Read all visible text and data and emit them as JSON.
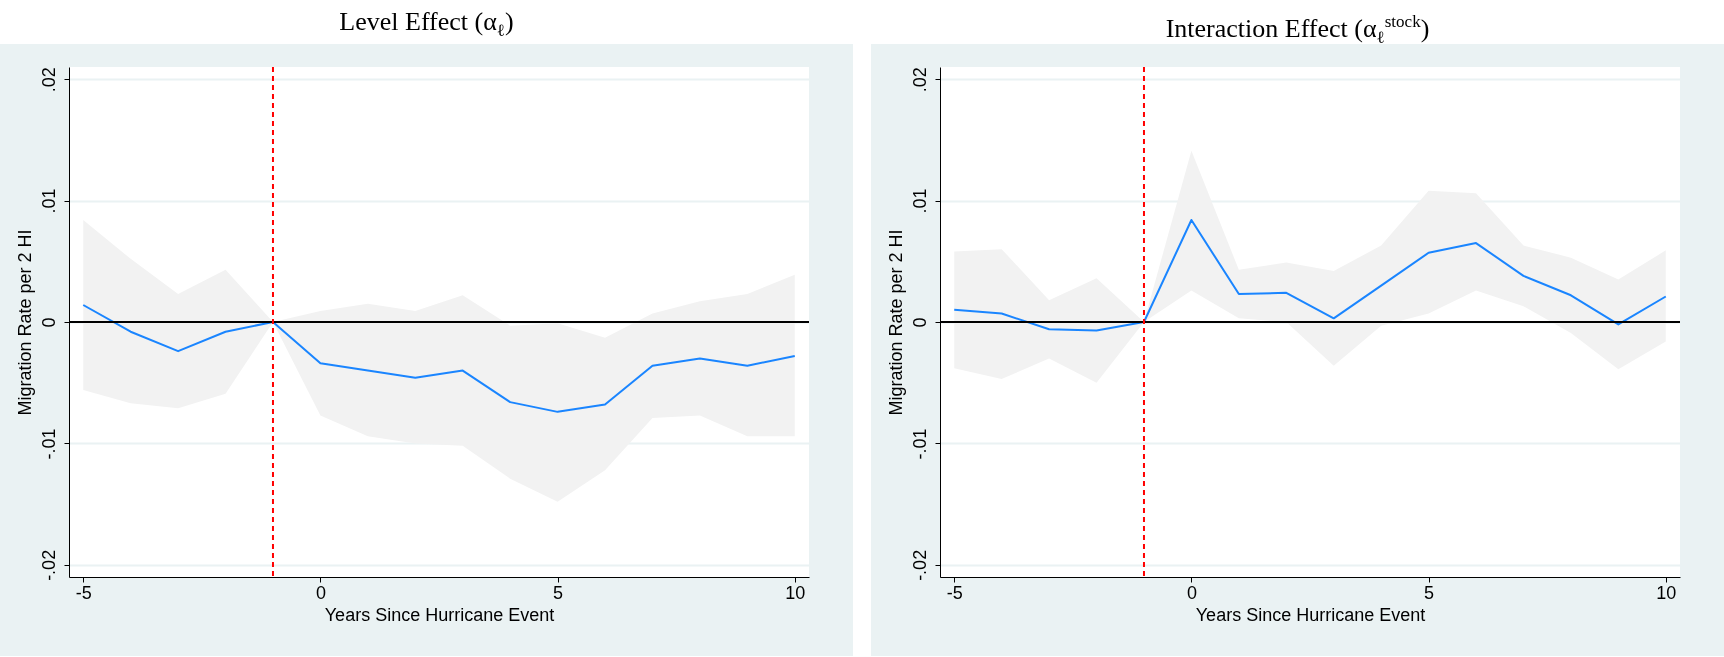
{
  "chart_data": [
    {
      "type": "line",
      "title": "Level Effect (α$_{ℓ}$)",
      "xlabel": "Years Since Hurricane Event",
      "ylabel": "Migration Rate per 2 HI",
      "x": [
        -5,
        -4,
        -3,
        -2,
        -1,
        0,
        1,
        2,
        3,
        4,
        5,
        6,
        7,
        8,
        9,
        10
      ],
      "series": [
        {
          "color": "#1a85ff",
          "values": [
            0.0014,
            -0.0008,
            -0.0024,
            -0.0008,
            0,
            -0.0034,
            -0.004,
            -0.0046,
            -0.004,
            -0.0066,
            -0.0074,
            -0.0068,
            -0.0036,
            -0.003,
            -0.0036,
            -0.0028
          ],
          "lower": [
            -0.0056,
            -0.0067,
            -0.0071,
            -0.0059,
            0,
            -0.0077,
            -0.0094,
            -0.01,
            -0.0102,
            -0.0129,
            -0.0148,
            -0.0122,
            -0.0079,
            -0.0077,
            -0.0094,
            -0.0094
          ],
          "upper": [
            0.0084,
            0.0052,
            0.0023,
            0.0043,
            0,
            0.0009,
            0.0015,
            0.0009,
            0.0022,
            -0.0003,
            -0.0001,
            -0.0013,
            0.0007,
            0.0017,
            0.0023,
            0.0039
          ]
        }
      ],
      "xlim": [
        -5.3,
        10.3
      ],
      "xticks": [
        -5,
        0,
        5,
        10
      ],
      "ylim": [
        -0.021,
        0.021
      ],
      "yticks": [
        {
          "value": -0.02,
          "label": "-.02"
        },
        {
          "value": -0.01,
          "label": "-.01"
        },
        0,
        {
          "value": 0.01,
          "label": ".01"
        },
        {
          "value": 0.02,
          "label": ".02"
        }
      ],
      "grid": "y",
      "line_style": "solid",
      "ref_lines": [
        {
          "axis": "y",
          "value": 0,
          "color": "#000000",
          "line_style": "solid"
        },
        {
          "axis": "x",
          "value": -1,
          "color": "#ff0000",
          "line_style": "dashed"
        }
      ]
    },
    {
      "type": "line",
      "title": "Interaction Effect (α$_{ℓ}$$^{stock}$)",
      "xlabel": "Years Since Hurricane Event",
      "ylabel": "Migration Rate per 2 HI",
      "x": [
        -5,
        -4,
        -3,
        -2,
        -1,
        0,
        1,
        2,
        3,
        4,
        5,
        6,
        7,
        8,
        9,
        10
      ],
      "series": [
        {
          "color": "#1a85ff",
          "values": [
            0.001,
            0.0007,
            -0.0006,
            -0.0007,
            0,
            0.0084,
            0.0023,
            0.0024,
            0.0003,
            0.003,
            0.0057,
            0.0065,
            0.0038,
            0.0022,
            -0.0002,
            0.0021
          ],
          "lower": [
            -0.0038,
            -0.0047,
            -0.003,
            -0.005,
            0,
            0.0026,
            0.0003,
            0,
            -0.0036,
            -0.0003,
            0.0007,
            0.0026,
            0.0013,
            -0.0009,
            -0.0039,
            -0.0016
          ],
          "upper": [
            0.0058,
            0.006,
            0.0018,
            0.0036,
            0,
            0.0141,
            0.0043,
            0.0049,
            0.0042,
            0.0063,
            0.0108,
            0.0106,
            0.0063,
            0.0053,
            0.0035,
            0.0059
          ]
        }
      ],
      "xlim": [
        -5.3,
        10.3
      ],
      "xticks": [
        -5,
        0,
        5,
        10
      ],
      "ylim": [
        -0.021,
        0.021
      ],
      "yticks": [
        {
          "value": -0.02,
          "label": "-.02"
        },
        {
          "value": -0.01,
          "label": "-.01"
        },
        0,
        {
          "value": 0.01,
          "label": ".01"
        },
        {
          "value": 0.02,
          "label": ".02"
        }
      ],
      "grid": "y",
      "line_style": "solid",
      "ref_lines": [
        {
          "axis": "y",
          "value": 0,
          "color": "#000000",
          "line_style": "solid"
        },
        {
          "axis": "x",
          "value": -1,
          "color": "#ff0000",
          "line_style": "dashed"
        }
      ]
    }
  ]
}
